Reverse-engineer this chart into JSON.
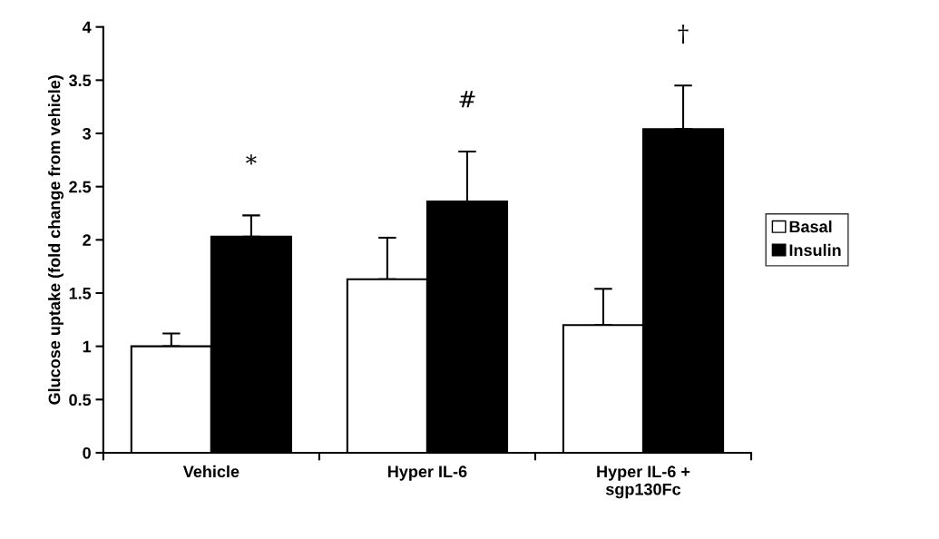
{
  "chart_data": {
    "type": "bar",
    "ylabel": "Glucose uptake (fold change from vehicle)",
    "categories": [
      "Vehicle",
      "Hyper IL-6",
      "Hyper IL-6 +\nsgp130Fc"
    ],
    "series": [
      {
        "name": "Basal",
        "color": "#ffffff",
        "values": [
          1.0,
          1.63,
          1.2
        ],
        "errors": [
          [
            1.0,
            1.12
          ],
          [
            1.63,
            2.02
          ],
          [
            1.2,
            1.54
          ]
        ]
      },
      {
        "name": "Insulin",
        "color": "#000000",
        "values": [
          2.03,
          2.36,
          3.04
        ],
        "errors": [
          [
            2.03,
            2.23
          ],
          [
            2.36,
            2.83
          ],
          [
            3.04,
            3.45
          ]
        ]
      }
    ],
    "annotations": [
      "*",
      "#",
      "†"
    ],
    "ylim": [
      0,
      4
    ],
    "yticks": [
      0,
      0.5,
      1,
      1.5,
      2,
      2.5,
      3,
      3.5,
      4
    ],
    "grid": false,
    "legend": "right"
  }
}
